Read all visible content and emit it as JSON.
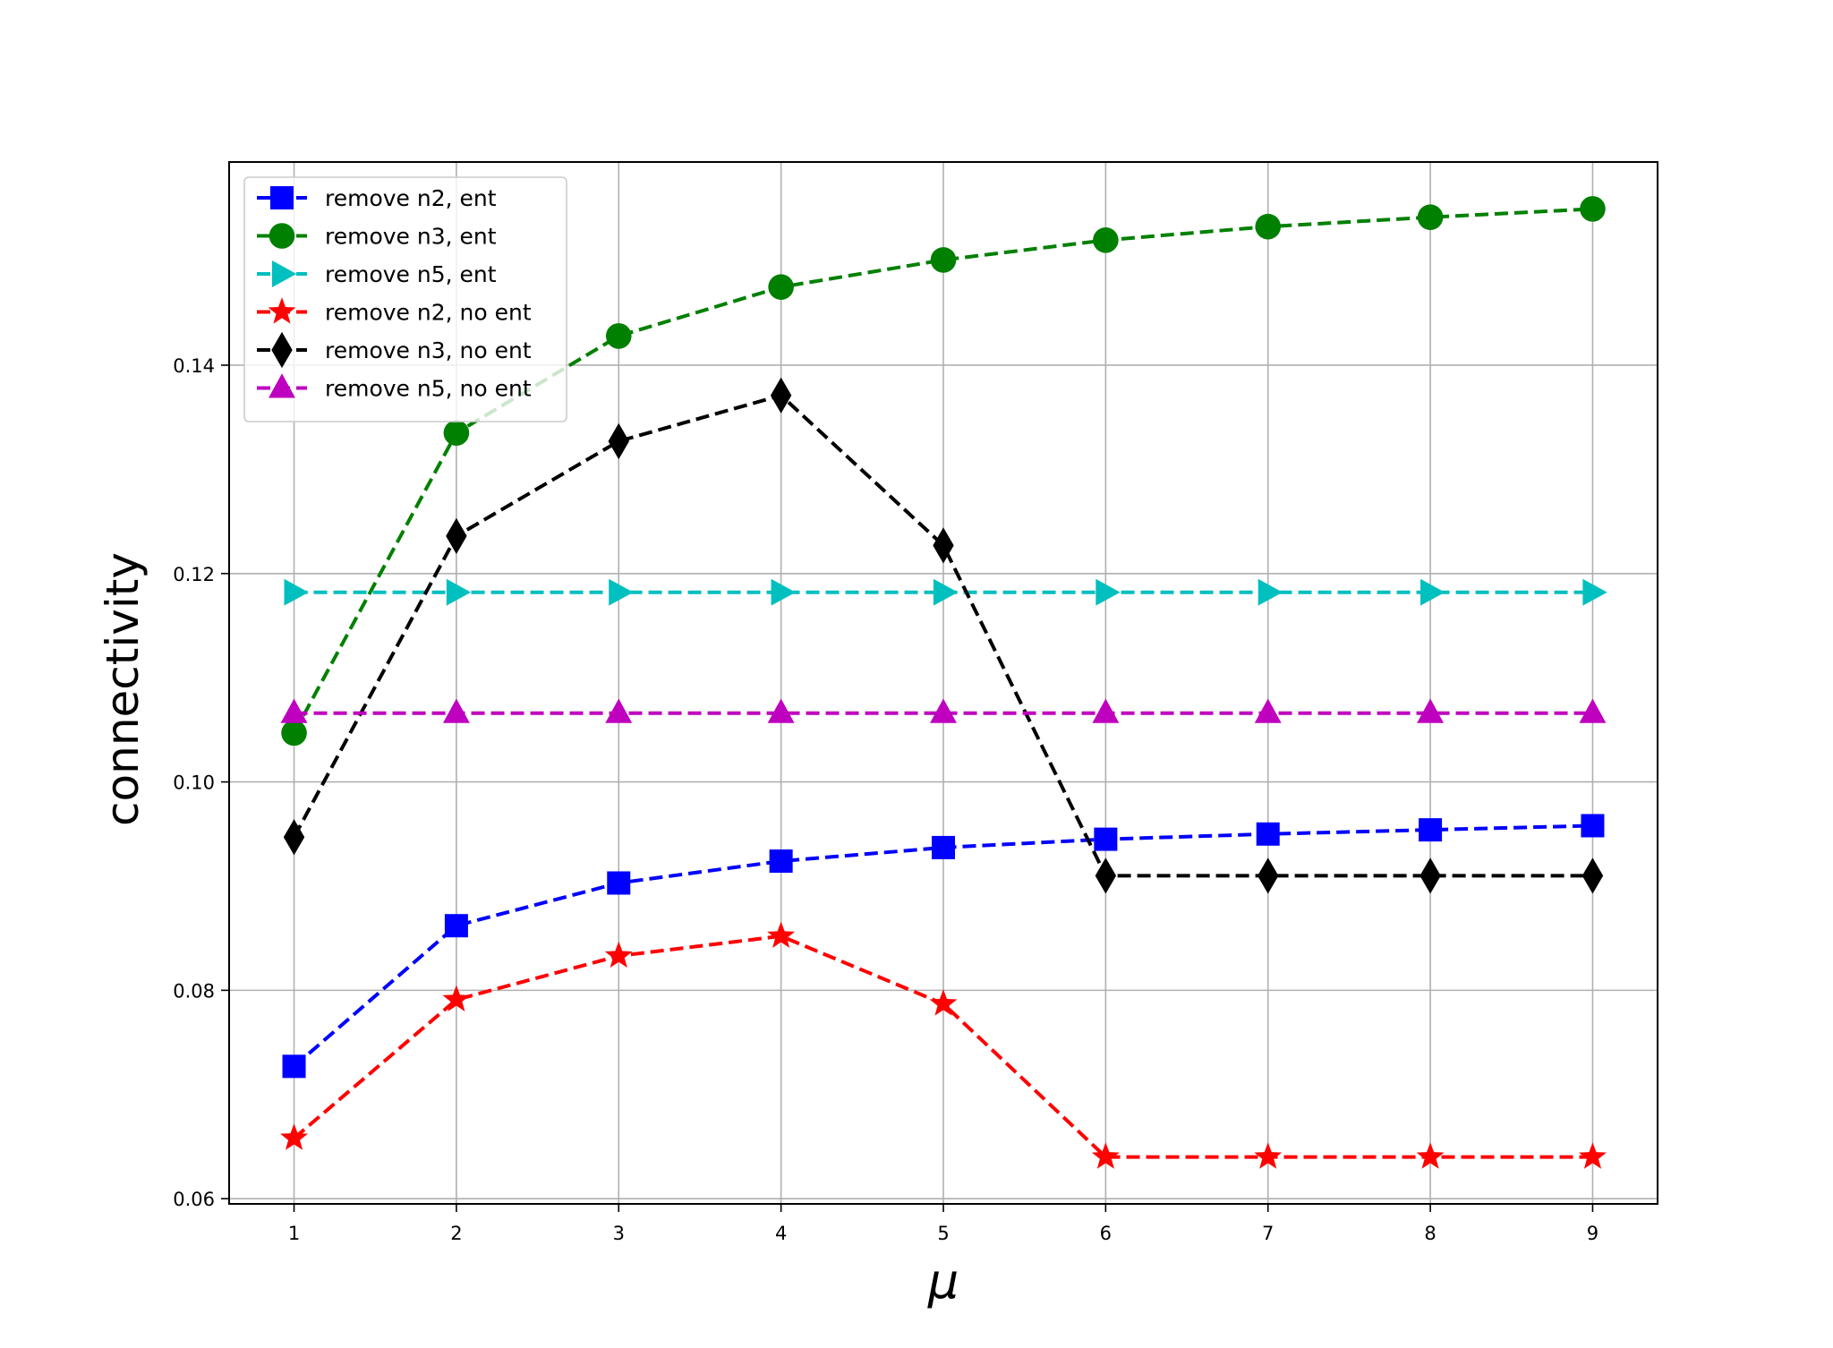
{
  "chart_data": {
    "type": "line",
    "xlabel": "μ",
    "ylabel": "connectivity",
    "xlim": [
      0.6,
      9.4
    ],
    "ylim": [
      0.0595,
      0.1595
    ],
    "x": [
      1,
      2,
      3,
      4,
      5,
      6,
      7,
      8,
      9
    ],
    "xticks": [
      1,
      2,
      3,
      4,
      5,
      6,
      7,
      8,
      9
    ],
    "yticks": [
      0.06,
      0.08,
      0.1,
      0.12,
      0.14
    ],
    "ytick_labels": [
      "0.06",
      "0.08",
      "0.10",
      "0.12",
      "0.14"
    ],
    "grid": true,
    "legend_position": "top-left",
    "line_style": "dashed",
    "series": [
      {
        "name": "remove n2, ent",
        "color": "#0000ff",
        "marker": "square",
        "values": [
          0.0727,
          0.0862,
          0.0903,
          0.0924,
          0.0937,
          0.0945,
          0.095,
          0.0954,
          0.0958
        ]
      },
      {
        "name": "remove n3, ent",
        "color": "#008000",
        "marker": "circle",
        "values": [
          0.1047,
          0.1335,
          0.1428,
          0.1475,
          0.1501,
          0.152,
          0.1533,
          0.1542,
          0.155
        ]
      },
      {
        "name": "remove n5, ent",
        "color": "#00bfbf",
        "marker": "triangle-right",
        "values": [
          0.1182,
          0.1182,
          0.1182,
          0.1182,
          0.1182,
          0.1182,
          0.1182,
          0.1182,
          0.1182
        ]
      },
      {
        "name": "remove n2, no ent",
        "color": "#ff0000",
        "marker": "star",
        "values": [
          0.0658,
          0.0791,
          0.0833,
          0.0852,
          0.0787,
          0.064,
          0.064,
          0.064,
          0.064
        ]
      },
      {
        "name": "remove n3, no ent",
        "color": "#000000",
        "marker": "diamond",
        "values": [
          0.0947,
          0.1236,
          0.1327,
          0.1371,
          0.1227,
          0.091,
          0.091,
          0.091,
          0.091
        ]
      },
      {
        "name": "remove n5, no ent",
        "color": "#bf00bf",
        "marker": "triangle-up",
        "values": [
          0.1066,
          0.1066,
          0.1066,
          0.1066,
          0.1066,
          0.1066,
          0.1066,
          0.1066,
          0.1066
        ]
      }
    ]
  }
}
